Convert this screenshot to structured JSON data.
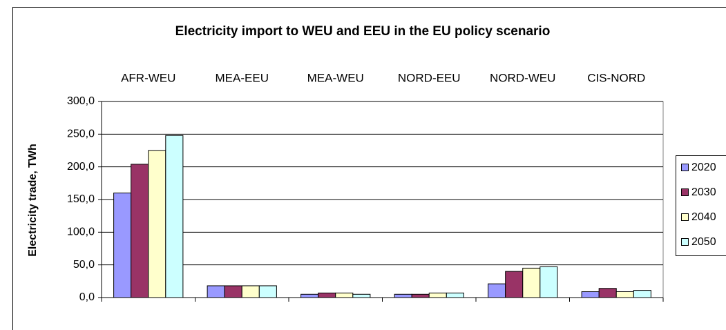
{
  "chart_data": {
    "type": "bar",
    "title": "Electricity import to WEU and EEU in the EU policy scenario",
    "y_label": "Electricity trade, TWh",
    "categories": [
      "AFR-WEU",
      "MEA-EEU",
      "MEA-WEU",
      "NORD-EEU",
      "NORD-WEU",
      "CIS-NORD"
    ],
    "series": [
      {
        "name": "2020",
        "color": "#9999ff",
        "values": [
          160,
          18,
          5,
          5,
          21,
          9
        ]
      },
      {
        "name": "2030",
        "color": "#993366",
        "values": [
          204,
          18,
          7,
          5,
          40,
          14
        ]
      },
      {
        "name": "2040",
        "color": "#ffffcc",
        "values": [
          225,
          18,
          7,
          7,
          45,
          9
        ]
      },
      {
        "name": "2050",
        "color": "#ccffff",
        "values": [
          248,
          18,
          5,
          7,
          47,
          11
        ]
      }
    ],
    "ylim": [
      0,
      300
    ],
    "yticks": [
      {
        "value": 0,
        "label": "0,0"
      },
      {
        "value": 50,
        "label": "50,0"
      },
      {
        "value": 100,
        "label": "100,0"
      },
      {
        "value": 150,
        "label": "150,0"
      },
      {
        "value": 200,
        "label": "200,0"
      },
      {
        "value": 250,
        "label": "250,0"
      },
      {
        "value": 300,
        "label": "300,0"
      }
    ],
    "grid": true,
    "legend": "right"
  }
}
